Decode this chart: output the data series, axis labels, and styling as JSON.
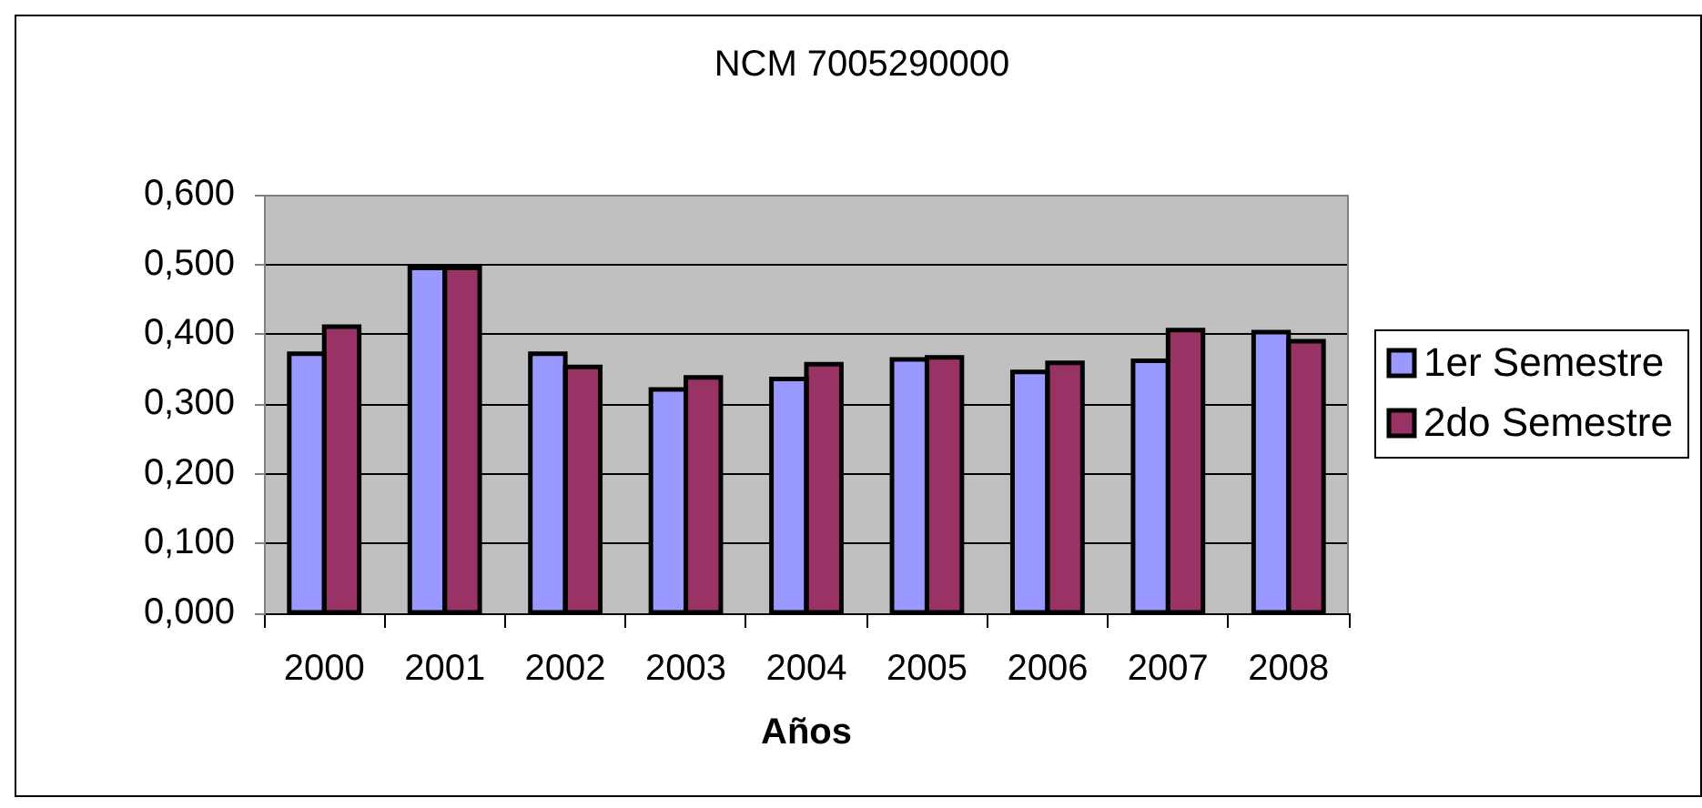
{
  "chart_data": {
    "type": "bar",
    "title": "NCM 7005290000",
    "xlabel": "Años",
    "categories": [
      "2000",
      "2001",
      "2002",
      "2003",
      "2004",
      "2005",
      "2006",
      "2007",
      "2008"
    ],
    "series": [
      {
        "name": "1er Semestre",
        "color": "#9999ff",
        "values": [
          0.372,
          0.495,
          0.372,
          0.321,
          0.336,
          0.364,
          0.346,
          0.362,
          0.403
        ]
      },
      {
        "name": "2do Semestre",
        "color": "#993366",
        "values": [
          0.411,
          0.495,
          0.353,
          0.338,
          0.357,
          0.367,
          0.359,
          0.406,
          0.39
        ]
      }
    ],
    "ylim": [
      0,
      0.6
    ],
    "yticks": [
      {
        "value": 0,
        "label": "0,000"
      },
      {
        "value": 0.1,
        "label": "0,100"
      },
      {
        "value": 0.2,
        "label": "0,200"
      },
      {
        "value": 0.3,
        "label": "0,300"
      },
      {
        "value": 0.4,
        "label": "0,400"
      },
      {
        "value": 0.5,
        "label": "0,500"
      },
      {
        "value": 0.6,
        "label": "0,600"
      }
    ],
    "grid": "y",
    "legend": "right"
  }
}
